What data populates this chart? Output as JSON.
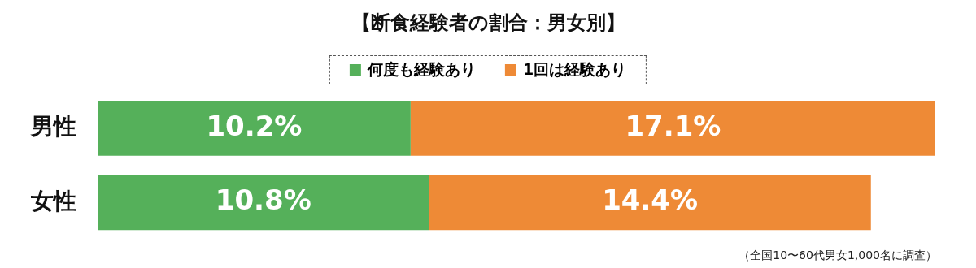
{
  "chart_data": {
    "type": "bar",
    "orientation": "horizontal",
    "stacked": true,
    "title": "【断食経験者の割合：男女別】",
    "categories": [
      "男性",
      "女性"
    ],
    "series": [
      {
        "name": "何度も経験あり",
        "color": "#55b05a",
        "values": [
          10.2,
          10.8
        ],
        "value_labels": [
          "10.2%",
          "10.8%"
        ]
      },
      {
        "name": "1回は経験あり",
        "color": "#ee8a36",
        "values": [
          17.1,
          14.4
        ],
        "value_labels": [
          "17.1%",
          "14.4%"
        ]
      }
    ],
    "legend": "top",
    "annotations": [
      "（全国10〜60代男女1,000名に調査）"
    ]
  }
}
